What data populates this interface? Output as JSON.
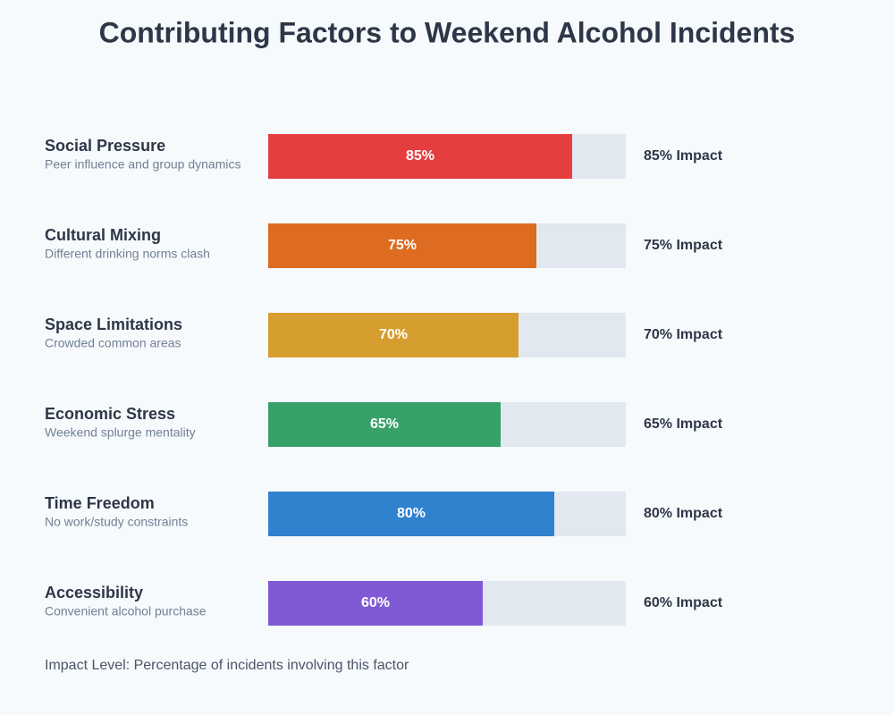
{
  "chart_data": {
    "type": "bar",
    "title": "Contributing Factors to Weekend Alcohol Incidents",
    "categories": [
      "Social Pressure",
      "Cultural Mixing",
      "Space Limitations",
      "Economic Stress",
      "Time Freedom",
      "Accessibility"
    ],
    "descriptions": [
      "Peer influence and group dynamics",
      "Different drinking norms clash",
      "Crowded common areas",
      "Weekend splurge mentality",
      "No work/study constraints",
      "Convenient alcohol purchase"
    ],
    "values": [
      85,
      75,
      70,
      65,
      80,
      60
    ],
    "value_labels": [
      "85%",
      "75%",
      "70%",
      "65%",
      "80%",
      "60%"
    ],
    "impact_labels": [
      "85% Impact",
      "75% Impact",
      "70% Impact",
      "65% Impact",
      "80% Impact",
      "60% Impact"
    ],
    "colors": [
      "#e53e3e",
      "#dd6b20",
      "#d69e2e",
      "#38a169",
      "#3182ce",
      "#805ad5"
    ],
    "track_color": "#e2e8f0",
    "xlim": [
      0,
      100
    ],
    "note": "Impact Level: Percentage of incidents involving this factor"
  }
}
